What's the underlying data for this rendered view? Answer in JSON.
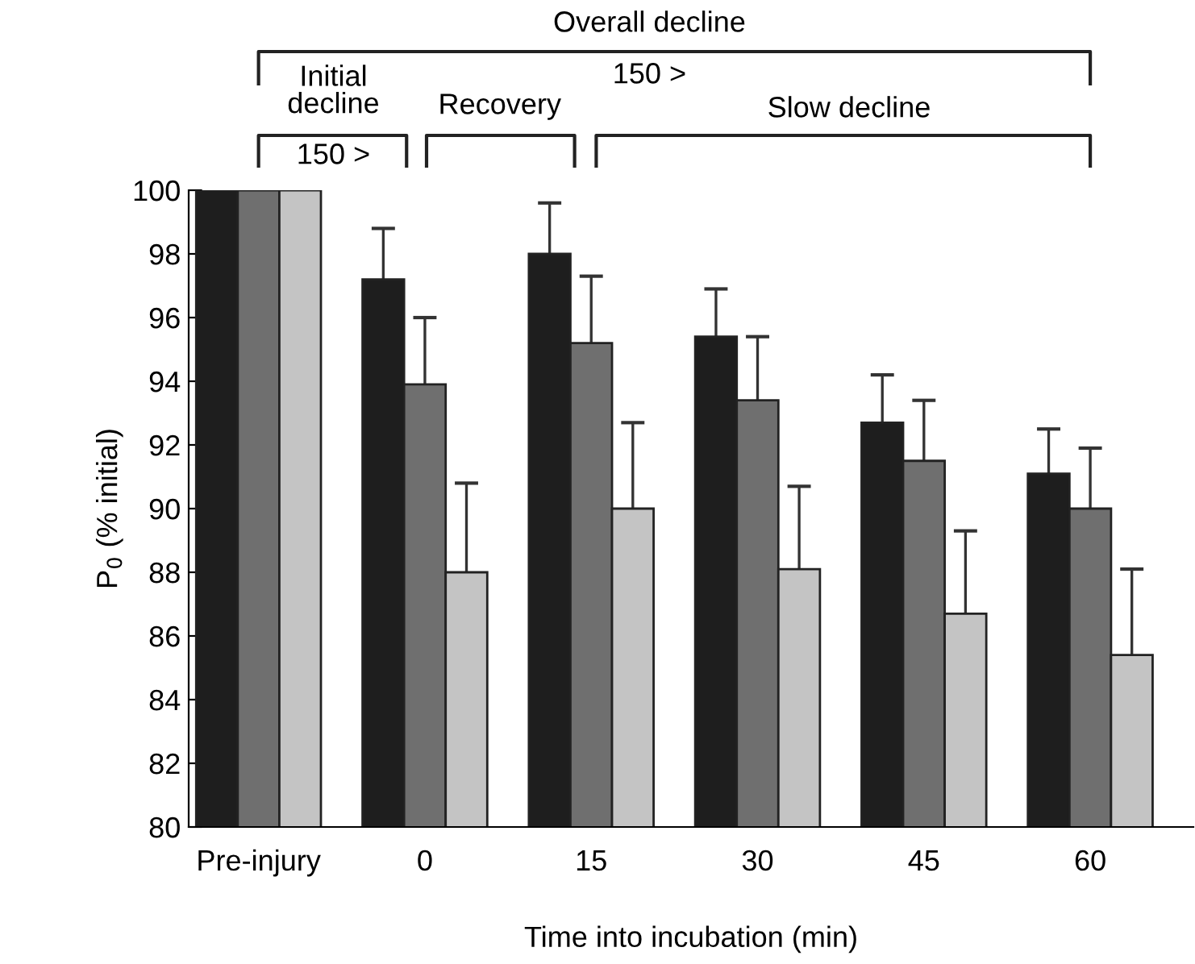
{
  "chart_data": {
    "type": "bar",
    "xlabel": "Time into incubation (min)",
    "ylabel": "P$_{0}$ (% initial)",
    "categories": [
      "Pre-injury",
      "0",
      "15",
      "30",
      "45",
      "60"
    ],
    "series": [
      {
        "color": "#1e1e1e",
        "values": [
          100,
          97.2,
          98.0,
          95.4,
          92.7,
          91.1
        ],
        "errors": [
          null,
          [
            97.2,
            98.8
          ],
          [
            98.0,
            99.6
          ],
          [
            95.4,
            96.9
          ],
          [
            92.7,
            94.2
          ],
          [
            91.1,
            92.5
          ]
        ]
      },
      {
        "color": "#6f6f6f",
        "values": [
          100,
          93.9,
          95.2,
          93.4,
          91.5,
          90.0
        ],
        "errors": [
          null,
          [
            93.9,
            96.0
          ],
          [
            95.2,
            97.3
          ],
          [
            93.4,
            95.4
          ],
          [
            91.5,
            93.4
          ],
          [
            90.0,
            91.9
          ]
        ]
      },
      {
        "color": "#c4c4c4",
        "values": [
          100,
          88.0,
          90.0,
          88.1,
          86.7,
          85.4
        ],
        "errors": [
          null,
          [
            88.0,
            90.8
          ],
          [
            90.0,
            92.7
          ],
          [
            88.1,
            90.7
          ],
          [
            86.7,
            89.3
          ],
          [
            85.4,
            88.1
          ]
        ]
      }
    ],
    "ylim": [
      80,
      100
    ],
    "yticks": [
      80,
      82,
      84,
      86,
      88,
      90,
      92,
      94,
      96,
      98,
      100
    ],
    "grid": false,
    "legend": false,
    "annotations": [
      "Overall decline",
      "150 >",
      "Initial\ndecline",
      "150 >",
      "Recovery",
      "Slow decline"
    ]
  }
}
